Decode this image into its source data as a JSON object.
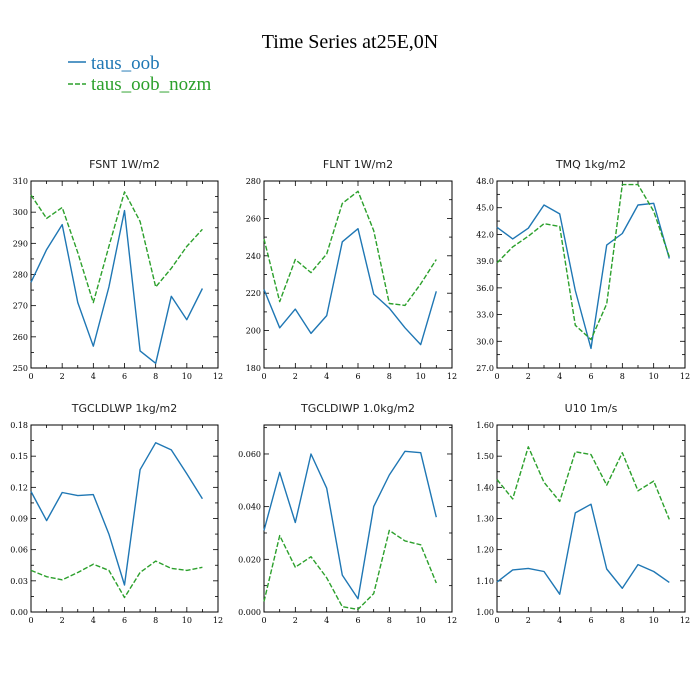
{
  "figure": {
    "title": "Time Series at25E,0N",
    "legend": [
      {
        "label": "taus_oob",
        "color": "#1f77b4",
        "dash": "solid"
      },
      {
        "label": "taus_oob_nozm",
        "color": "#2ca02c",
        "dash": "dashed"
      }
    ]
  },
  "chart_data": [
    {
      "type": "line",
      "title": "FSNT   1W/m2",
      "x": [
        0,
        1,
        2,
        3,
        4,
        5,
        6,
        7,
        8,
        9,
        10,
        11
      ],
      "xlim": [
        0,
        12
      ],
      "xticks": [
        "0",
        "2",
        "4",
        "6",
        "8",
        "10",
        "12"
      ],
      "ylim": [
        250,
        310
      ],
      "yticks": [
        "250",
        "260",
        "270",
        "280",
        "290",
        "300",
        "310"
      ],
      "series": [
        {
          "name": "taus_oob",
          "color": "#1f77b4",
          "values": [
            277.5,
            288,
            296,
            271,
            257,
            276,
            300.5,
            255.5,
            251.5,
            273,
            265.5,
            275.5
          ]
        },
        {
          "name": "taus_oob_nozm",
          "color": "#2ca02c",
          "values": [
            305.5,
            298,
            301.5,
            287,
            271,
            289,
            306.5,
            297,
            276,
            282,
            289,
            294.5
          ]
        }
      ]
    },
    {
      "type": "line",
      "title": "FLNT   1W/m2",
      "x": [
        0,
        1,
        2,
        3,
        4,
        5,
        6,
        7,
        8,
        9,
        10,
        11
      ],
      "xlim": [
        0,
        12
      ],
      "xticks": [
        "0",
        "2",
        "4",
        "6",
        "8",
        "10",
        "12"
      ],
      "ylim": [
        180,
        280
      ],
      "yticks": [
        "180",
        "200",
        "220",
        "240",
        "260",
        "280"
      ],
      "series": [
        {
          "name": "taus_oob",
          "color": "#1f77b4",
          "values": [
            222,
            201.5,
            211.5,
            198.5,
            208,
            247.5,
            254.5,
            219.5,
            212,
            201.5,
            192.5,
            221
          ]
        },
        {
          "name": "taus_oob_nozm",
          "color": "#2ca02c",
          "values": [
            249,
            215.5,
            238,
            231,
            241,
            268,
            274.5,
            253.5,
            214.5,
            213.5,
            225,
            238
          ]
        }
      ]
    },
    {
      "type": "line",
      "title": "TMQ   1kg/m2",
      "x": [
        0,
        1,
        2,
        3,
        4,
        5,
        6,
        7,
        8,
        9,
        10,
        11
      ],
      "xlim": [
        0,
        12
      ],
      "xticks": [
        "0",
        "2",
        "4",
        "6",
        "8",
        "10",
        "12"
      ],
      "ylim": [
        27.0,
        48.0
      ],
      "yticks": [
        "27.0",
        "30.0",
        "33.0",
        "36.0",
        "39.0",
        "42.0",
        "45.0",
        "48.0"
      ],
      "series": [
        {
          "name": "taus_oob",
          "color": "#1f77b4",
          "values": [
            42.8,
            41.5,
            42.7,
            45.3,
            44.3,
            35.7,
            29.2,
            40.8,
            42.1,
            45.3,
            45.5,
            39.3
          ]
        },
        {
          "name": "taus_oob_nozm",
          "color": "#2ca02c",
          "values": [
            38.8,
            40.6,
            41.8,
            43.2,
            42.9,
            31.8,
            30.2,
            34.2,
            47.6,
            47.6,
            44.6,
            39.5
          ]
        }
      ]
    },
    {
      "type": "line",
      "title": "TGCLDLWP   1kg/m2",
      "x": [
        0,
        1,
        2,
        3,
        4,
        5,
        6,
        7,
        8,
        9,
        10,
        11
      ],
      "xlim": [
        0,
        12
      ],
      "xticks": [
        "0",
        "2",
        "4",
        "6",
        "8",
        "10",
        "12"
      ],
      "ylim": [
        0.0,
        0.18
      ],
      "yticks": [
        "0.00",
        "0.03",
        "0.06",
        "0.09",
        "0.12",
        "0.15",
        "0.18"
      ],
      "series": [
        {
          "name": "taus_oob",
          "color": "#1f77b4",
          "values": [
            0.116,
            0.088,
            0.115,
            0.112,
            0.113,
            0.075,
            0.026,
            0.137,
            0.163,
            0.156,
            0.133,
            0.109
          ]
        },
        {
          "name": "taus_oob_nozm",
          "color": "#2ca02c",
          "values": [
            0.04,
            0.034,
            0.031,
            0.038,
            0.046,
            0.04,
            0.014,
            0.038,
            0.049,
            0.042,
            0.04,
            0.043
          ]
        }
      ]
    },
    {
      "type": "line",
      "title": "TGCLDIWP   1.0kg/m2",
      "x": [
        0,
        1,
        2,
        3,
        4,
        5,
        6,
        7,
        8,
        9,
        10,
        11
      ],
      "xlim": [
        0,
        12
      ],
      "xticks": [
        "0",
        "2",
        "4",
        "6",
        "8",
        "10",
        "12"
      ],
      "ylim": [
        0.0,
        0.071
      ],
      "yticks": [
        "0.000",
        "0.020",
        "0.040",
        "0.060"
      ],
      "series": [
        {
          "name": "taus_oob",
          "color": "#1f77b4",
          "values": [
            0.031,
            0.053,
            0.034,
            0.06,
            0.047,
            0.014,
            0.005,
            0.04,
            0.052,
            0.061,
            0.0605,
            0.036
          ]
        },
        {
          "name": "taus_oob_nozm",
          "color": "#2ca02c",
          "values": [
            0.004,
            0.029,
            0.017,
            0.021,
            0.013,
            0.002,
            0.001,
            0.007,
            0.031,
            0.027,
            0.0255,
            0.011
          ]
        }
      ]
    },
    {
      "type": "line",
      "title": "U10   1m/s",
      "x": [
        0,
        1,
        2,
        3,
        4,
        5,
        6,
        7,
        8,
        9,
        10,
        11
      ],
      "xlim": [
        0,
        12
      ],
      "xticks": [
        "0",
        "2",
        "4",
        "6",
        "8",
        "10",
        "12"
      ],
      "ylim": [
        1.0,
        1.6
      ],
      "yticks": [
        "1.00",
        "1.10",
        "1.20",
        "1.30",
        "1.40",
        "1.50",
        "1.60"
      ],
      "series": [
        {
          "name": "taus_oob",
          "color": "#1f77b4",
          "values": [
            1.096,
            1.135,
            1.14,
            1.13,
            1.057,
            1.318,
            1.346,
            1.138,
            1.076,
            1.152,
            1.13,
            1.095
          ]
        },
        {
          "name": "taus_oob_nozm",
          "color": "#2ca02c",
          "values": [
            1.425,
            1.363,
            1.53,
            1.416,
            1.355,
            1.514,
            1.505,
            1.407,
            1.511,
            1.389,
            1.42,
            1.297
          ]
        }
      ]
    }
  ]
}
